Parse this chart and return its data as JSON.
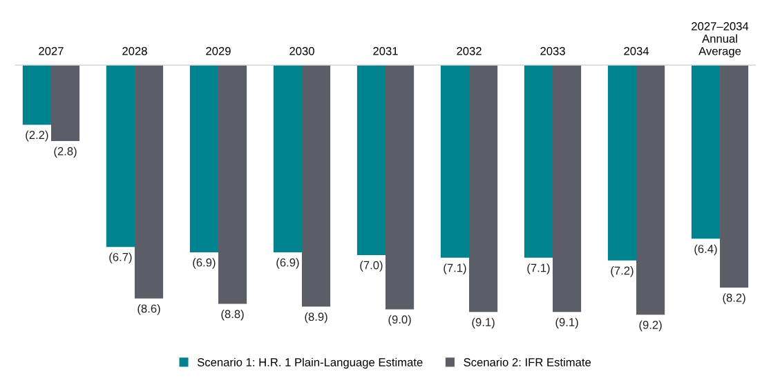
{
  "chart_data": {
    "type": "bar",
    "categories": [
      "2027",
      "2028",
      "2029",
      "2030",
      "2031",
      "2032",
      "2033",
      "2034",
      "2027–2034\nAnnual\nAverage"
    ],
    "series": [
      {
        "name": "Scenario 1: H.R. 1 Plain-Language Estimate",
        "color": "#00838f",
        "values": [
          -2.2,
          -6.7,
          -6.9,
          -6.9,
          -7.0,
          -7.1,
          -7.1,
          -7.2,
          -6.4
        ],
        "value_labels": [
          "(2.2)",
          "(6.7)",
          "(6.9)",
          "(6.9)",
          "(7.0)",
          "(7.1)",
          "(7.1)",
          "(7.2)",
          "(6.4)"
        ]
      },
      {
        "name": "Scenario 2: IFR Estimate",
        "color": "#5b5e66",
        "values": [
          -2.8,
          -8.6,
          -8.8,
          -8.9,
          -9.0,
          -9.1,
          -9.1,
          -9.2,
          -8.2
        ],
        "value_labels": [
          "(2.8)",
          "(8.6)",
          "(8.8)",
          "(8.9)",
          "(9.0)",
          "(9.1)",
          "(9.1)",
          "(9.2)",
          "(8.2)"
        ]
      }
    ],
    "legend": "bottom",
    "grid": false
  }
}
